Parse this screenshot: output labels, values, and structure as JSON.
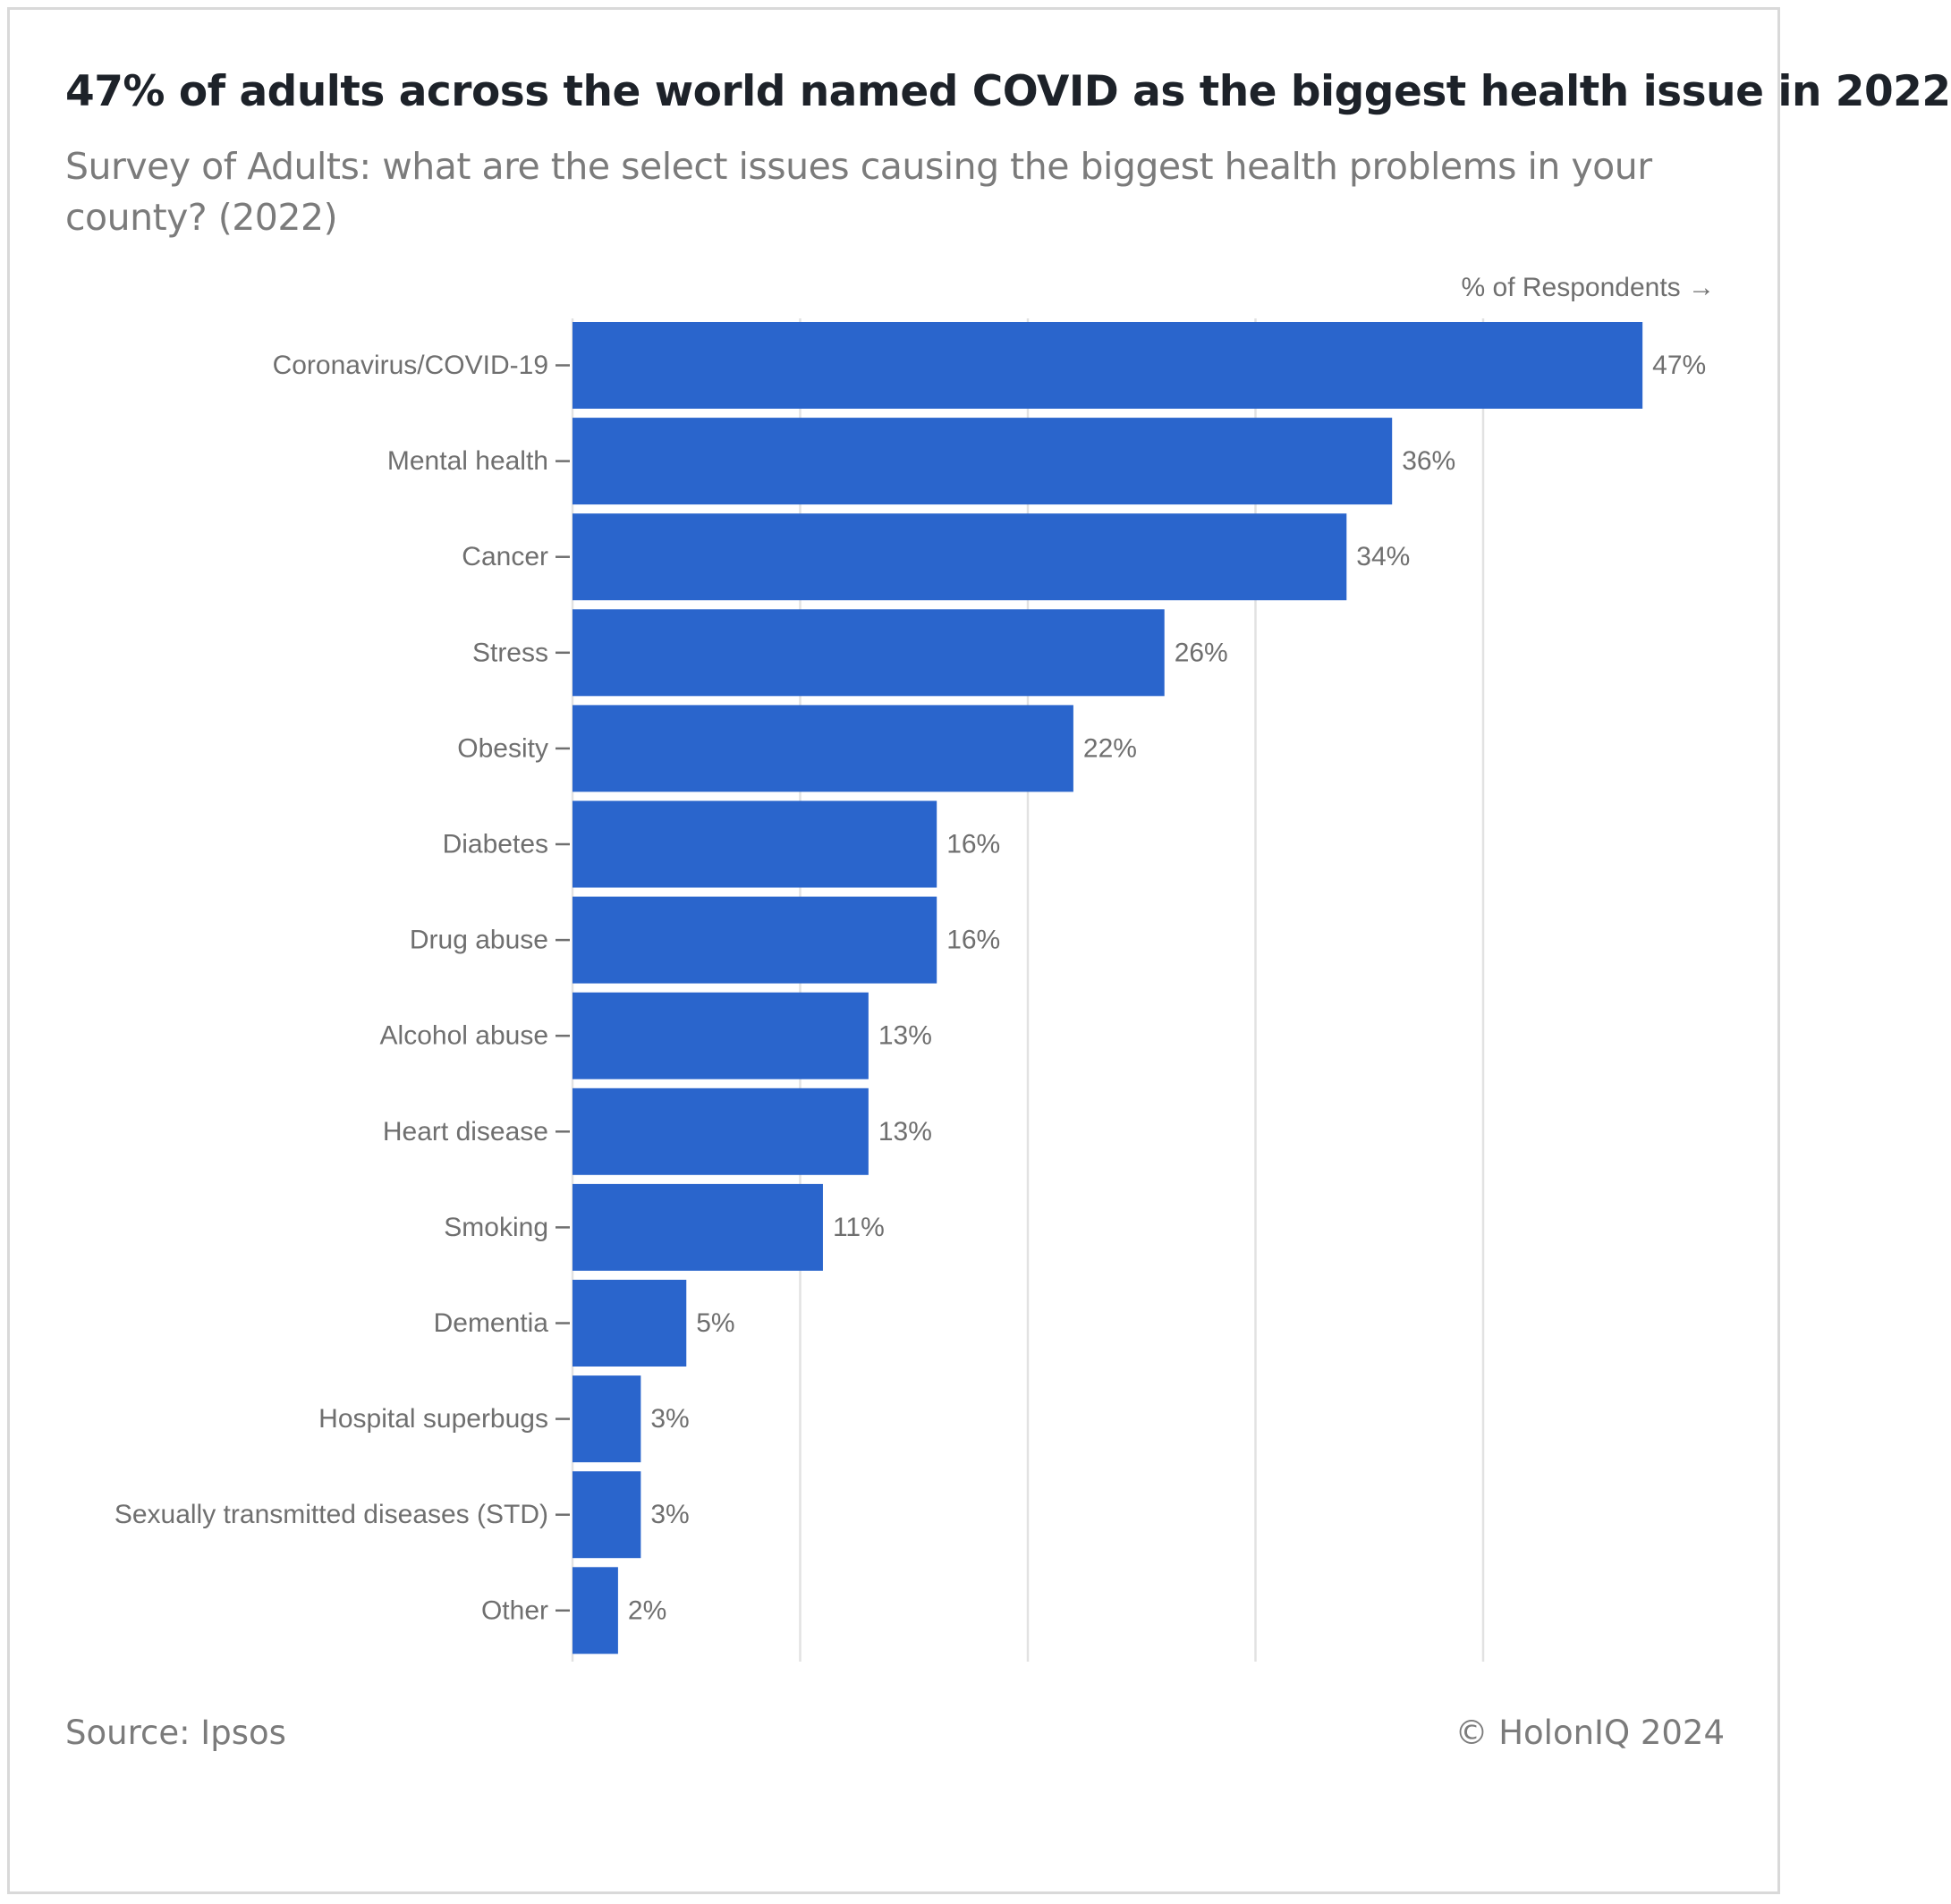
{
  "chart_data": {
    "type": "bar",
    "orientation": "horizontal",
    "title": "47% of adults across the world named COVID as the biggest health issue in 2022",
    "subtitle": "Survey of Adults: what are the select issues causing the biggest health problems in your county? (2022)",
    "xlabel": "% of Respondents →",
    "ylabel": "",
    "categories": [
      "Coronavirus/COVID-19",
      "Mental health",
      "Cancer",
      "Stress",
      "Obesity",
      "Diabetes",
      "Drug abuse",
      "Alcohol abuse",
      "Heart disease",
      "Smoking",
      "Dementia",
      "Hospital superbugs",
      "Sexually transmitted diseases (STD)",
      "Other"
    ],
    "values": [
      47,
      36,
      34,
      26,
      22,
      16,
      16,
      13,
      13,
      11,
      5,
      3,
      3,
      2
    ],
    "value_labels": [
      "47%",
      "36%",
      "34%",
      "26%",
      "22%",
      "16%",
      "16%",
      "13%",
      "13%",
      "11%",
      "5%",
      "3%",
      "3%",
      "2%"
    ],
    "xlim": [
      0,
      50
    ],
    "x_gridlines": [
      0,
      10,
      20,
      30,
      40
    ],
    "grid": true,
    "bar_color": "#2a65cc",
    "source": "Source: Ipsos",
    "credit": "© HolonIQ 2024"
  }
}
